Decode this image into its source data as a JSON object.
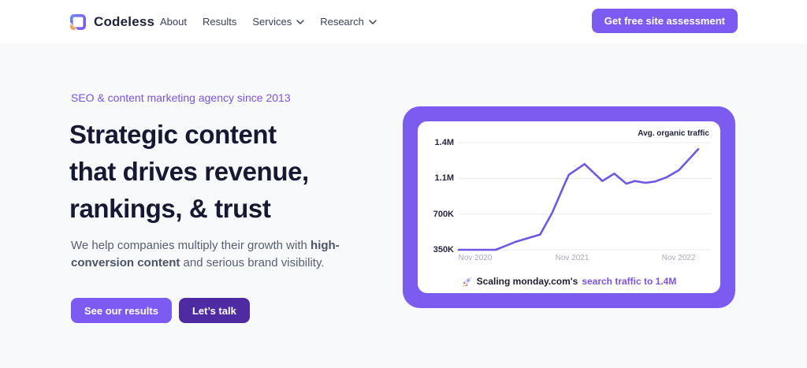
{
  "page": {
    "background": "#f8f9fb",
    "header_background": "#ffffff",
    "accent_purple": "#7b5bf2",
    "dark_purple": "#4e2ba3",
    "heading_color": "#171831"
  },
  "header": {
    "logo_text": "Codeless",
    "nav_items": [
      {
        "label": "About",
        "has_dropdown": false
      },
      {
        "label": "Results",
        "has_dropdown": false
      },
      {
        "label": "Services",
        "has_dropdown": true
      },
      {
        "label": "Research",
        "has_dropdown": true
      }
    ],
    "cta_button_label": "Get free site assessment"
  },
  "hero": {
    "eyebrow": "SEO & content marketing agency since 2013",
    "heading_lines": {
      "0": "Strategic content",
      "1": "that drives revenue,",
      "2": "rankings, & trust"
    },
    "description": {
      "prefix": "We help companies multiply their growth with ",
      "bold": "high-conversion content",
      "suffix": " and serious brand visibility."
    },
    "primary_button_label": "See our results",
    "secondary_button_label": "Let’s talk"
  },
  "chart_card": {
    "border_color": "#7c5cf0",
    "caption": {
      "icon": "rocket-icon",
      "prefix": "Scaling monday.com's",
      "highlight": "search traffic to 1.4M",
      "highlight_color": "#7b52e8"
    }
  },
  "chart_data": {
    "type": "line",
    "title": "Avg. organic traffic",
    "legend_position": "top-right",
    "grid": true,
    "gridline_color": "#e9e9ee",
    "line_color": "#7156e3",
    "y_tick_labels": {
      "0": "1.4M",
      "1": "1.1M",
      "2": "700K",
      "3": "350K"
    },
    "y_tick_values": [
      1400000,
      1100000,
      700000,
      350000
    ],
    "y_axis_note": "ticks equally spaced (stylized scale), 350K at bottom",
    "x_tick_labels": {
      "0": "Nov 2020",
      "1": "Nov 2021",
      "2": "Nov 2022"
    },
    "x_tick_positions": [
      0.067,
      0.451,
      0.872
    ],
    "series": [
      {
        "name": "monday.com avg. organic traffic",
        "points": [
          {
            "x": 0.0,
            "value": 350000
          },
          {
            "x": 0.147,
            "value": 350000
          },
          {
            "x": 0.228,
            "value": 430000
          },
          {
            "x": 0.323,
            "value": 500000
          },
          {
            "x": 0.371,
            "value": 715000
          },
          {
            "x": 0.423,
            "value": 1055000
          },
          {
            "x": 0.437,
            "value": 1130000
          },
          {
            "x": 0.499,
            "value": 1220000
          },
          {
            "x": 0.57,
            "value": 1070000
          },
          {
            "x": 0.617,
            "value": 1140000
          },
          {
            "x": 0.665,
            "value": 1040000
          },
          {
            "x": 0.698,
            "value": 1070000
          },
          {
            "x": 0.741,
            "value": 1050000
          },
          {
            "x": 0.779,
            "value": 1065000
          },
          {
            "x": 0.826,
            "value": 1110000
          },
          {
            "x": 0.874,
            "value": 1170000
          },
          {
            "x": 0.95,
            "value": 1345000
          }
        ]
      }
    ]
  }
}
